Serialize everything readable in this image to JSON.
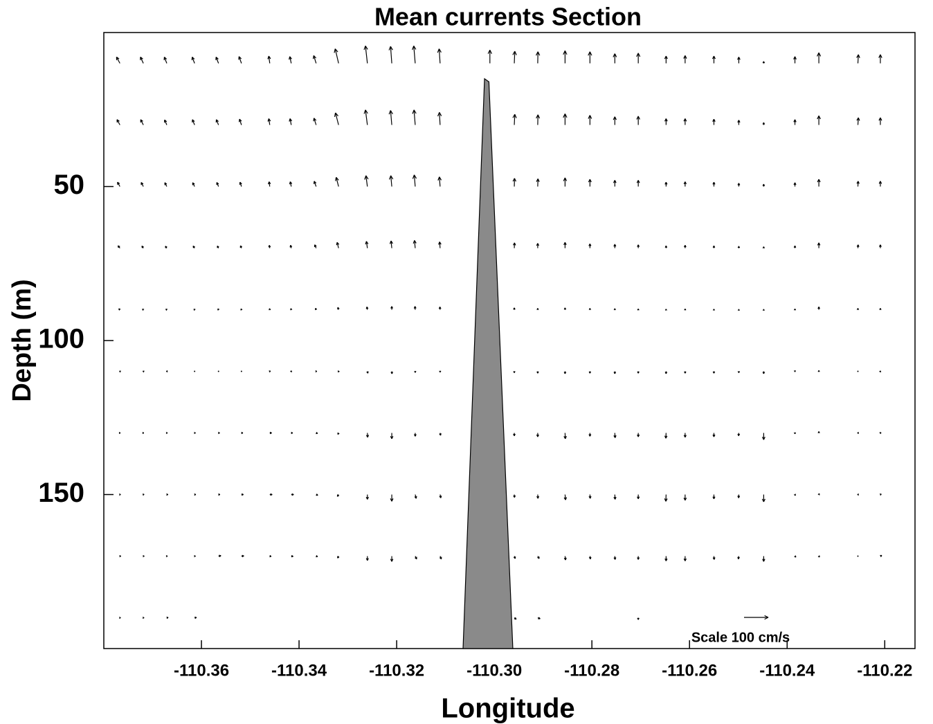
{
  "chart_data": {
    "type": "quiver",
    "title": "Mean currents Section",
    "x_label": "Longitude",
    "y_label": "Depth (m)",
    "xlim": [
      -110.38,
      -110.2138
    ],
    "ylim": [
      0,
      200
    ],
    "y_inverted": true,
    "xticks": [
      -110.36,
      -110.34,
      -110.32,
      {
        "value": -110.3,
        "label": "-110.30"
      },
      -110.28,
      -110.26,
      -110.24,
      -110.22
    ],
    "yticks": [
      50,
      100,
      150
    ],
    "color": "#000000",
    "depths": [
      10,
      30,
      50,
      70,
      90,
      110,
      130,
      150,
      170,
      190
    ],
    "columns": [
      {
        "x": -110.3767,
        "u": [
          -14,
          -12,
          -10,
          -8,
          -5,
          -2,
          2,
          3,
          4,
          3
        ],
        "w": [
          26,
          22,
          18,
          10,
          4,
          1,
          0,
          0,
          0,
          0
        ]
      },
      {
        "x": -110.3719,
        "u": [
          -12,
          -11,
          -9,
          -6,
          -4,
          -2,
          2,
          3,
          4,
          3
        ],
        "w": [
          26,
          22,
          17,
          9,
          3,
          1,
          0,
          1,
          0,
          0
        ]
      },
      {
        "x": -110.3671,
        "u": [
          -10,
          -9,
          -8,
          -6,
          -4,
          -2,
          3,
          5,
          3,
          6
        ],
        "w": [
          26,
          21,
          16,
          8,
          3,
          0,
          0,
          0,
          0,
          1
        ]
      },
      {
        "x": -110.3614,
        "u": [
          -10,
          -9,
          -8,
          -6,
          -3,
          -1,
          4,
          5,
          4,
          8
        ],
        "w": [
          26,
          22,
          16,
          9,
          3,
          0,
          0,
          0,
          0,
          1
        ]
      },
      {
        "x": -110.3565,
        "u": [
          -10,
          -9,
          -7,
          -5,
          -3,
          -1,
          5,
          6,
          10,
          null
        ],
        "w": [
          26,
          22,
          17,
          9,
          4,
          1,
          0,
          0,
          2,
          null
        ]
      },
      {
        "x": -110.3518,
        "u": [
          -10,
          -8,
          -6,
          -4,
          -2,
          1,
          6,
          8,
          10,
          null
        ],
        "w": [
          28,
          24,
          18,
          10,
          4,
          1,
          0,
          0,
          1,
          null
        ]
      },
      {
        "x": -110.346,
        "u": [
          -4,
          -4,
          -3,
          -2,
          -1,
          3,
          8,
          10,
          6,
          null
        ],
        "w": [
          30,
          26,
          20,
          12,
          5,
          1,
          0,
          0,
          -1,
          null
        ]
      },
      {
        "x": -110.3416,
        "u": [
          -6,
          -5,
          -4,
          -3,
          -2,
          2,
          6,
          10,
          8,
          null
        ],
        "w": [
          28,
          26,
          20,
          12,
          5,
          2,
          0,
          0,
          -1,
          null
        ]
      },
      {
        "x": -110.3365,
        "u": [
          -10,
          -9,
          -8,
          -6,
          -3,
          3,
          6,
          7,
          6,
          null
        ],
        "w": [
          32,
          28,
          22,
          14,
          6,
          0,
          -2,
          -3,
          -2,
          null
        ]
      },
      {
        "x": -110.3319,
        "u": [
          -14,
          -13,
          -10,
          -6,
          -3,
          -2,
          -3,
          -5,
          -4,
          null
        ],
        "w": [
          60,
          50,
          38,
          24,
          10,
          -3,
          -6,
          -8,
          -8,
          null
        ]
      },
      {
        "x": -110.326,
        "u": [
          -8,
          -8,
          -6,
          -4,
          -2,
          2,
          1,
          0,
          0,
          null
        ],
        "w": [
          72,
          62,
          45,
          28,
          12,
          -8,
          -18,
          -20,
          -18,
          null
        ]
      },
      {
        "x": -110.321,
        "u": [
          -5,
          -5,
          -4,
          -3,
          0,
          1,
          0,
          0,
          0,
          null
        ],
        "w": [
          70,
          60,
          45,
          30,
          14,
          -10,
          -24,
          -28,
          -22,
          null
        ]
      },
      {
        "x": -110.3162,
        "u": [
          -6,
          -5,
          -4,
          -3,
          -1,
          0,
          0,
          4,
          6,
          null
        ],
        "w": [
          72,
          62,
          48,
          32,
          14,
          -5,
          -14,
          -16,
          -12,
          null
        ]
      },
      {
        "x": -110.3111,
        "u": [
          -4,
          -3,
          -3,
          -2,
          -1,
          0,
          2,
          3,
          5,
          null
        ],
        "w": [
          60,
          52,
          40,
          26,
          12,
          -4,
          -10,
          -14,
          -12,
          null
        ]
      },
      {
        "x": -110.3009,
        "u": [
          0,
          null,
          null,
          null,
          null,
          null,
          null,
          null,
          null,
          null
        ],
        "w": [
          55,
          null,
          null,
          null,
          null,
          null,
          null,
          null,
          null,
          null
        ]
      },
      {
        "x": -110.2959,
        "u": [
          2,
          2,
          1,
          1,
          0,
          0,
          0,
          1,
          4,
          8
        ],
        "w": [
          50,
          44,
          34,
          22,
          8,
          -6,
          -12,
          -12,
          -10,
          -6
        ]
      },
      {
        "x": -110.2911,
        "u": [
          1,
          1,
          1,
          0,
          0,
          0,
          0,
          1,
          6,
          10
        ],
        "w": [
          48,
          42,
          32,
          20,
          6,
          -8,
          -16,
          -16,
          -10,
          -4
        ]
      },
      {
        "x": -110.2855,
        "u": [
          0,
          0,
          0,
          0,
          0,
          0,
          1,
          2,
          2,
          null
        ],
        "w": [
          52,
          46,
          36,
          24,
          8,
          -10,
          -24,
          -22,
          -16,
          null
        ]
      },
      {
        "x": -110.2804,
        "u": [
          0,
          0,
          0,
          0,
          0,
          0,
          0,
          1,
          2,
          null
        ],
        "w": [
          48,
          40,
          30,
          18,
          6,
          -8,
          -14,
          -16,
          -12,
          null
        ]
      },
      {
        "x": -110.2753,
        "u": [
          0,
          0,
          0,
          0,
          0,
          0,
          1,
          1,
          1,
          null
        ],
        "w": [
          40,
          34,
          26,
          16,
          5,
          -10,
          -20,
          -20,
          -14,
          null
        ]
      },
      {
        "x": -110.2705,
        "u": [
          0,
          0,
          0,
          0,
          0,
          0,
          0,
          0,
          0,
          0
        ],
        "w": [
          42,
          36,
          26,
          14,
          4,
          -8,
          -16,
          -18,
          -14,
          -8
        ]
      },
      {
        "x": -110.2648,
        "u": [
          0,
          0,
          0,
          0,
          0,
          0,
          -1,
          -1,
          0,
          null
        ],
        "w": [
          30,
          26,
          18,
          10,
          3,
          -10,
          -22,
          -28,
          -20,
          null
        ]
      },
      {
        "x": -110.2609,
        "u": [
          0,
          0,
          0,
          0,
          0,
          0,
          0,
          0,
          0,
          null
        ],
        "w": [
          32,
          26,
          20,
          12,
          4,
          -8,
          -18,
          -24,
          -20,
          null
        ]
      },
      {
        "x": -110.255,
        "u": [
          0,
          0,
          0,
          0,
          0,
          0,
          0,
          0,
          1,
          null
        ],
        "w": [
          30,
          24,
          18,
          10,
          3,
          -8,
          -16,
          -18,
          -14,
          null
        ]
      },
      {
        "x": -110.2499,
        "u": [
          0,
          0,
          0,
          0,
          0,
          0,
          -1,
          -1,
          -2,
          null
        ],
        "w": [
          26,
          20,
          14,
          8,
          2,
          -6,
          -12,
          -14,
          -12,
          null
        ]
      },
      {
        "x": -110.2448,
        "u": [
          0,
          0,
          0,
          0,
          0,
          0,
          0,
          0,
          0,
          null
        ],
        "w": [
          8,
          10,
          10,
          6,
          2,
          -10,
          -28,
          -30,
          -22,
          null
        ]
      },
      {
        "x": -110.2384,
        "u": [
          0,
          0,
          0,
          0,
          0,
          0,
          0,
          2,
          4,
          null
        ],
        "w": [
          28,
          22,
          16,
          10,
          4,
          -2,
          -4,
          -4,
          -4,
          null
        ]
      },
      {
        "x": -110.2335,
        "u": [
          0,
          0,
          0,
          0,
          0,
          0,
          0,
          2,
          3,
          null
        ],
        "w": [
          44,
          38,
          30,
          22,
          12,
          4,
          6,
          4,
          -4,
          null
        ]
      },
      {
        "x": -110.2255,
        "u": [
          2,
          2,
          1,
          1,
          0,
          -1,
          -2,
          -2,
          -1,
          null
        ],
        "w": [
          36,
          30,
          22,
          14,
          6,
          1,
          0,
          0,
          0,
          null
        ]
      },
      {
        "x": -110.2209,
        "u": [
          0,
          0,
          0,
          0,
          0,
          1,
          3,
          4,
          6,
          null
        ],
        "w": [
          36,
          30,
          22,
          14,
          6,
          2,
          2,
          2,
          3,
          null
        ]
      }
    ],
    "ridge": {
      "x": [
        -110.3064,
        -110.302,
        -110.3011,
        -110.2962
      ],
      "y": [
        200,
        15,
        16,
        200
      ],
      "color": "#8a8a8a"
    },
    "scale": {
      "label": "Scale 100 cm/s",
      "value": 100
    }
  }
}
